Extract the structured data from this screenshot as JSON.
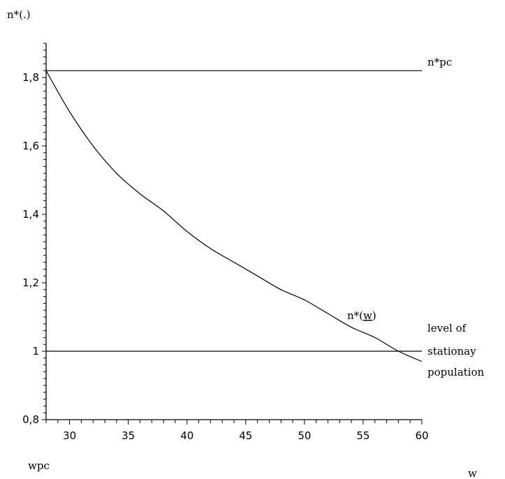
{
  "chart_data": {
    "type": "line",
    "title": "",
    "ylabel": "n*(.)",
    "xlabel": "w",
    "x_origin_label": "wpc",
    "xlim": [
      28,
      60
    ],
    "ylim": [
      0.8,
      1.9
    ],
    "x_ticks": [
      30,
      35,
      40,
      45,
      50,
      55,
      60
    ],
    "x_tick_labels": [
      "30",
      "35",
      "40",
      "45",
      "50",
      "55",
      "60"
    ],
    "y_ticks": [
      0.8,
      1.0,
      1.2,
      1.4,
      1.6,
      1.8
    ],
    "y_tick_labels": [
      "0,8",
      "1",
      "1,2",
      "1,4",
      "1,6",
      "1,8"
    ],
    "grid": false,
    "series": [
      {
        "name": "n*(w)",
        "kind": "curve",
        "x": [
          28,
          30,
          32,
          34,
          36,
          38,
          40,
          42,
          44,
          46,
          48,
          50,
          52,
          54,
          56,
          58,
          60
        ],
        "y": [
          1.82,
          1.7,
          1.6,
          1.52,
          1.46,
          1.41,
          1.35,
          1.3,
          1.26,
          1.22,
          1.18,
          1.15,
          1.11,
          1.07,
          1.04,
          1.0,
          0.97
        ]
      },
      {
        "name": "n*pc",
        "kind": "horizontal",
        "y": 1.82
      },
      {
        "name": "level of stationay population",
        "kind": "horizontal",
        "y": 1.0
      }
    ],
    "annotations": [
      {
        "text": "n*pc"
      },
      {
        "text": "n*(",
        "underlined": "w",
        "after": ")"
      },
      {
        "lines": [
          "level of",
          "stationay",
          "population"
        ]
      }
    ]
  }
}
